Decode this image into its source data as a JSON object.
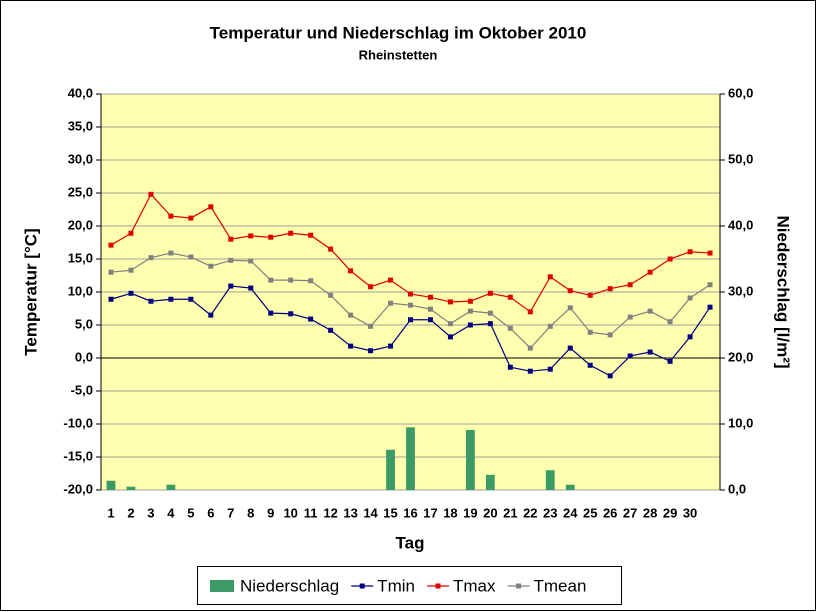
{
  "chart_data": {
    "type": "combo",
    "title": "Temperatur und Niederschlag im Oktober 2010",
    "subtitle": "Rheinstetten",
    "x_label": "Tag",
    "y_label": "Temperatur [°C]",
    "y2_label": "Niederschlag [l/m²]",
    "categories": [
      "1",
      "2",
      "3",
      "4",
      "5",
      "6",
      "7",
      "8",
      "9",
      "10",
      "11",
      "12",
      "13",
      "14",
      "15",
      "16",
      "17",
      "18",
      "19",
      "20",
      "21",
      "22",
      "23",
      "24",
      "25",
      "26",
      "27",
      "28",
      "29",
      "30",
      null
    ],
    "ylim": [
      -20,
      40
    ],
    "yticks": [
      {
        "value": -20,
        "label": "-20,0"
      },
      {
        "value": -15,
        "label": "-15,0"
      },
      {
        "value": -10,
        "label": "-10,0"
      },
      {
        "value": -5,
        "label": "-5,0"
      },
      {
        "value": 0,
        "label": "0,0"
      },
      {
        "value": 5,
        "label": "5,0"
      },
      {
        "value": 10,
        "label": "10,0"
      },
      {
        "value": 15,
        "label": "15,0"
      },
      {
        "value": 20,
        "label": "20,0"
      },
      {
        "value": 25,
        "label": "25,0"
      },
      {
        "value": 30,
        "label": "30,0"
      },
      {
        "value": 35,
        "label": "35,0"
      },
      {
        "value": 40,
        "label": "40,0"
      }
    ],
    "y2lim": [
      0,
      60
    ],
    "y2ticks": [
      {
        "value": 0,
        "label": "0,0"
      },
      {
        "value": 10,
        "label": "10,0"
      },
      {
        "value": 20,
        "label": "20,0"
      },
      {
        "value": 30,
        "label": "30,0"
      },
      {
        "value": 40,
        "label": "40,0"
      },
      {
        "value": 50,
        "label": "50,0"
      },
      {
        "value": 60,
        "label": "60,0"
      }
    ],
    "grid": true,
    "legend": "bottom",
    "series": [
      {
        "name": "Niederschlag",
        "type": "bar",
        "axis": "y2",
        "color": "#3c9a64",
        "values": [
          1.4,
          0.5,
          0,
          0.8,
          0,
          0,
          0,
          0,
          0,
          0,
          0,
          0,
          0,
          0,
          6.1,
          9.5,
          0,
          0,
          9.1,
          2.3,
          0,
          0,
          3.0,
          0.8,
          0,
          0,
          0,
          0,
          0,
          0,
          0
        ]
      },
      {
        "name": "Tmin",
        "type": "line",
        "color": "#000080",
        "values": [
          8.9,
          9.8,
          8.6,
          8.9,
          8.9,
          6.5,
          10.9,
          10.6,
          6.8,
          6.7,
          5.9,
          4.2,
          1.8,
          1.1,
          1.8,
          5.8,
          5.8,
          3.2,
          5.0,
          5.2,
          -1.4,
          -2.0,
          -1.7,
          1.5,
          -1.1,
          -2.7,
          0.3,
          0.9,
          -0.5,
          3.2,
          7.7
        ]
      },
      {
        "name": "Tmax",
        "type": "line",
        "color": "#e00000",
        "values": [
          17.1,
          18.9,
          24.8,
          21.5,
          21.2,
          22.9,
          18.0,
          18.5,
          18.3,
          18.9,
          18.6,
          16.5,
          13.2,
          10.8,
          11.8,
          9.7,
          9.2,
          8.5,
          8.6,
          9.8,
          9.2,
          7.0,
          12.3,
          10.2,
          9.5,
          10.5,
          11.1,
          13.0,
          15.0,
          16.1,
          15.9
        ]
      },
      {
        "name": "Tmean",
        "type": "line",
        "color": "#808080",
        "values": [
          13.0,
          13.3,
          15.2,
          15.9,
          15.3,
          13.9,
          14.8,
          14.7,
          11.8,
          11.8,
          11.7,
          9.5,
          6.5,
          4.8,
          8.3,
          8.0,
          7.4,
          5.2,
          7.1,
          6.8,
          4.5,
          1.5,
          4.8,
          7.6,
          3.9,
          3.5,
          6.2,
          7.1,
          5.5,
          9.1,
          11.1
        ]
      }
    ]
  }
}
